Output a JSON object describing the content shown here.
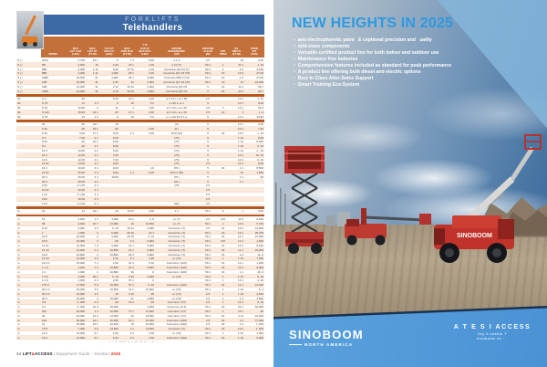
{
  "left_page": {
    "header": {
      "category": "FORKLIFTS",
      "title": "Telehandlers"
    },
    "columns": [
      {
        "lines": [
          "MODEL"
        ]
      },
      {
        "lines": [
          "MAX",
          "LIFT CAP",
          "(LBS)"
        ]
      },
      {
        "lines": [
          "MAX",
          "LIFT HT",
          "(FT-IN)"
        ]
      },
      {
        "lines": [
          "CAP AT",
          "MAX HT",
          "(LBS)"
        ]
      },
      {
        "lines": [
          "MAX",
          "FWD RCH",
          "(FT-IN)"
        ]
      },
      {
        "lines": [
          "T PI",
          "CAP AT",
          "MAX RCH",
          "(LBS)"
        ]
      },
      {
        "lines": [
          "ENGINE",
          "MAKE/MODEL",
          "(HP)"
        ]
      },
      {
        "lines": [
          "GROUND",
          "CLEAR",
          "(IN)"
        ]
      },
      {
        "lines": [
          "STD",
          "TIRES"
        ]
      },
      {
        "lines": [
          "OA",
          "WIDTH",
          "(FT-IN)"
        ]
      },
      {
        "lines": [
          "OPER",
          "WT",
          "(LBS)"
        ]
      }
    ],
    "sections": [
      {
        "rows": [
          [
            "S ( )",
            "3P13",
            "2,700",
            "13 1",
            "5",
            "7 1",
            "5,00",
            "a 1.4",
            "2 5",
            "",
            "10",
            "2,00"
          ],
          [
            "S ( )",
            "6B",
            "4,000",
            "19",
            "1,00",
            "23 1",
            "1,00",
            "a C2 (7)",
            "50 1",
            "1",
            "11 1",
            "1, 10"
          ],
          [
            "S ( )",
            "6B2",
            "4,000",
            "1 11",
            "4,00",
            "27 11",
            "1,10",
            "Cummins QS 3.0 (7)",
            "50 1",
            "1",
            "1 0",
            "2,100"
          ],
          [
            "S ( )",
            "8B2",
            "4,000",
            "1 11",
            "4,000",
            "26 1",
            "2,00",
            "Cummins QS 3.8 (70)",
            "50 1",
            "10",
            "10 0",
            "27,00"
          ],
          [
            "S ( )",
            "10B2",
            "10,000",
            "21",
            "4,000",
            "26 1",
            "6,000",
            "Cummins D50 3 (70)",
            "50 1",
            "10",
            "1 2",
            "27,00"
          ],
          [
            "S ( )",
            "10B",
            "10,000",
            "31",
            "1,00",
            "31",
            "1,000",
            "Cummins QS 3.8 (70)",
            "50 1",
            "10",
            "13",
            "24,200"
          ],
          [
            "S ( )",
            "12B",
            "12,000",
            "31",
            "2 10",
            "30 10",
            "2,000",
            "Cummins QS 3.8",
            "5",
            "16",
            "11 0",
            "30,7"
          ],
          [
            "S ( )",
            "12B2",
            "12,000",
            "31",
            "2 10",
            "30 10",
            "2,000",
            "Cummins QS 4.5",
            "5",
            "16",
            "11 0",
            "30,7"
          ]
        ]
      },
      {
        "rows": [
          [
            "Sk",
            "S 2",
            ",40",
            "",
            "6,43",
            "19 1",
            "2,20",
            "a C 14 i + a i+ 50",
            "2 5",
            "",
            "10 1",
            "1, 10"
          ],
          [
            "Sk",
            "S 75",
            ",72",
            "1 4",
            ", 0",
            "10",
            "5 0",
            "i+i 90 1 i a i i",
            "5",
            "",
            "10 1",
            "9,04"
          ],
          [
            "Sk",
            "S 10",
            "10,00",
            "3",
            ", 11",
            "1",
            "1,90",
            "a C 14 i+ a i+ 50",
            "2 5",
            "1",
            "13 1",
            "24,3"
          ],
          [
            "Sk",
            "S 110",
            "15,00",
            "19 1",
            ",00",
            "17 1",
            "2,90",
            "a C 14 i+ a i+ 50",
            "2 5",
            "10",
            "1",
            "1, 4"
          ],
          [
            "Sk",
            "S 75",
            ",72",
            "1 4",
            ", 0",
            "10",
            "5 0",
            "i+ i+i 40 10 0 1 i+",
            "5",
            "",
            "10 1",
            "10,92"
          ]
        ]
      },
      {
        "rows": [
          [
            "",
            "20",
            ",00",
            "20 1",
            ", 10",
            "",
            "",
            "(0)",
            "5",
            "",
            "10 1",
            "9,00"
          ],
          [
            "",
            "6 20",
            ",00",
            "20 1",
            ",00",
            "",
            "2,00",
            "(0 )",
            "5",
            "",
            "10 1",
            "7,00"
          ],
          [
            "",
            "6 34",
            "5,00",
            "17 1",
            "6,00",
            "2 1",
            "2,00",
            "6/10  (10)",
            "5",
            "20",
            "13 0",
            "1, 10"
          ],
          [
            "",
            "6 4",
            "7,00",
            "2 1",
            "6,00",
            "",
            "",
            "(70)",
            "5",
            "",
            "1 10",
            "8,00"
          ],
          [
            "",
            "8 34",
            ",00",
            "16 1",
            "6,00",
            "",
            "",
            "(70)",
            "5",
            "",
            "1 10",
            "8,000"
          ],
          [
            "",
            "8 4",
            ",00",
            "2 1",
            "6,00",
            "",
            "",
            "(70)",
            "5",
            "",
            "1 10",
            "2, 10"
          ],
          [
            "",
            "10 4",
            "10,00",
            "4 1",
            "6,00",
            "",
            "",
            "(70)",
            "5",
            "",
            "1 10",
            "2 , 10"
          ],
          [
            "",
            "12 4",
            "12,00",
            "4 1",
            "7,00",
            "",
            "",
            "(70)",
            "5",
            "",
            "10 1",
            "10, 10"
          ],
          [
            "",
            "12 6",
            "12,00",
            "4 1",
            "7,20",
            "",
            "",
            "(70)",
            "5",
            "",
            "10 1",
            "0, 10"
          ],
          [
            "",
            "14 02",
            "14,00",
            "2 4",
            "9,00",
            "",
            "",
            "(70)",
            "2 5",
            "",
            "10 1",
            "9,00"
          ],
          [
            "",
            "16 3",
            "16,00",
            "3 4",
            "9,00",
            "",
            ", 10",
            "(76 )",
            "5",
            "16",
            "1 1",
            "8,500"
          ],
          [
            "",
            "20 02",
            "20,00",
            "2 4",
            "6,00",
            "1 1",
            "6,00",
            "4/10 4 (50)",
            "5",
            "",
            "10",
            "1,500"
          ],
          [
            "",
            "20 3",
            "20,00",
            "3 4",
            "10,00",
            "",
            "",
            "(76 )",
            "5",
            "",
            "1 1",
            ",00"
          ],
          [
            "",
            "20 4",
            "20,00",
            "4 1",
            "",
            "",
            "",
            "(76 )",
            "5",
            "",
            "1 1",
            ""
          ],
          [
            "",
            "2 02",
            "2 1,00",
            "2 4",
            "",
            "",
            "",
            "(70)",
            "2 5",
            "",
            "",
            ""
          ],
          [
            "",
            "10 02",
            "10,00",
            "2 4",
            "",
            "",
            "",
            "",
            "2 5",
            "",
            "",
            ""
          ],
          [
            "",
            "1 02",
            "2 1,00",
            "2 4",
            "",
            "",
            "",
            "",
            "2 5",
            "",
            "",
            ""
          ],
          [
            "",
            "9 02",
            "10,00",
            "2 4",
            "",
            "",
            "",
            "",
            "2 5",
            "",
            "",
            ""
          ],
          [
            "",
            "1 02",
            "2 1,00",
            "2 4",
            "",
            "",
            "",
            "(52)",
            "2 5",
            "",
            "",
            ""
          ]
        ]
      },
      {
        "rows": [
          [
            "a i",
            "62",
            ", 11",
            "19 1",
            ", 10",
            "10 10",
            "2,00",
            "2 1",
            "50 1",
            "9",
            "1",
            "9,02"
          ]
        ]
      },
      {
        "rows": [
          [
            "m",
            "61",
            "4,000",
            "1 4",
            "3,000",
            "19 1",
            "2 ,0",
            "a i (7)",
            "2 5",
            "101",
            "11 0",
            "9,200"
          ],
          [
            "m",
            "68",
            "4,600",
            "10 7",
            "13,800",
            "16",
            "13,600",
            "a i (7)",
            "50 1",
            "1",
            "10 0",
            "5,700"
          ],
          [
            "m",
            "8 10",
            "6,000",
            "3 0",
            "6, 10",
            "26 11",
            "2,000",
            "Cummins i (7)",
            "2 5",
            "16",
            "12 0",
            "21,000"
          ],
          [
            "m",
            "1",
            "1,000",
            "4",
            "5,000",
            "20 10",
            "22 1",
            "Cummins i (7)",
            "50 1",
            "16",
            "10 1",
            "25,700"
          ],
          [
            "m",
            "10 8",
            "10,000",
            "4",
            "6,000",
            "20 10",
            "5, 10",
            "Cummins i (7)",
            "50 1",
            "16",
            "12 1",
            "21,520"
          ],
          [
            "m",
            "10 8",
            "10,000",
            "4",
            ",00",
            "0 1",
            "5,000",
            "Cummins i (7)",
            "50 1",
            "107",
            "12 1",
            "1,600"
          ],
          [
            "m",
            "11 10",
            "11,000",
            "7 4",
            "6,200",
            "21 1",
            "5,000",
            "Cummins i (7)",
            "50 1",
            "16",
            "10 1",
            "8,610"
          ],
          [
            "m",
            "12 10",
            "12,000",
            "2 4",
            "10,800",
            "21 1",
            "6,800",
            "Cummins i (7)",
            "50 1",
            "16",
            "12 1",
            "10,200"
          ],
          [
            "m",
            "12 8",
            "12,800",
            "4",
            "10,800",
            "26 4",
            "5,000",
            "Cummins i (7)",
            "50 1",
            "16",
            "1 4",
            "12, 0"
          ],
          [
            "m",
            "12 10",
            "12,000",
            "4 0",
            "1,00",
            "6 1",
            "1,00",
            "a i (73)",
            "50 1",
            "1",
            "1 10",
            "7,000"
          ],
          [
            "m",
            "13 0 C",
            "15,000",
            "7 4",
            "1,00",
            "31 4",
            "5 10",
            "Cummins i (120)",
            "50 1",
            "16",
            "12 1",
            "1,200"
          ],
          [
            "m",
            "1 1 C",
            "1,000",
            "7 4",
            "10,800",
            "31 4",
            "6,000",
            "Cummins i (120)",
            "50 1",
            "16",
            "12 0",
            "9,000"
          ],
          [
            "m",
            "1 C",
            "1,000",
            "4",
            "10,800",
            "30",
            "0",
            "Cummins i (120)",
            "50 1",
            "16",
            "1 1",
            "16, 0"
          ],
          [
            "m",
            "1 9 C",
            "1,000",
            "30 1",
            "6, 10",
            "3 10",
            "5,000",
            "a i (73)",
            "50 1",
            "1",
            "1 10",
            "6, 10"
          ],
          [
            "m",
            "1 4 C",
            "1,000",
            "0 4",
            "2,00",
            "67 1",
            "0",
            "",
            "50 1",
            "1",
            "16 1",
            "4, 10"
          ],
          [
            "m",
            "175 C",
            "17,000",
            "5 0",
            "15,000",
            "57 1",
            "6, 10",
            "Cummins i (120)",
            "50 1",
            "16",
            "12 1",
            "13,040"
          ],
          [
            "m",
            "20 1 C",
            "20,000",
            "5 0",
            "16,500",
            "16 1",
            "10,000",
            "a i (73)",
            "50 1",
            "1",
            "1 10",
            "5, 4"
          ],
          [
            "m",
            "20 2 C",
            "24,000",
            "2 0",
            ", 10",
            "2 10",
            ",00",
            "a i (73)",
            "2 5",
            "1",
            "1 10",
            "2,620"
          ],
          [
            "m",
            "20 C",
            "24,000",
            "4",
            "15,000",
            "27",
            "4,000",
            "a i (73)",
            "2 5",
            "1",
            "1 4",
            "4,500"
          ],
          [
            "m",
            "2 8",
            "2 ,000",
            "4 0",
            ",00",
            "16 4",
            ",00",
            "Cummins i (77)",
            "2 5",
            "1",
            "16 1",
            "6, 40"
          ],
          [
            "m",
            "2 4",
            "2 ,000",
            "10 4",
            "15,000",
            "",
            "4,000",
            "Cummins i (2 4)",
            "50 1",
            "10",
            "20 1",
            "62,000"
          ],
          [
            "m",
            "301",
            "30,000",
            "1 4",
            "12,000",
            "77 1",
            "12,000",
            "Cummins i (77)",
            "50 1",
            "1",
            "16 1",
            ", 40"
          ],
          [
            "m",
            "40",
            "40,000",
            "10 4",
            "14,000",
            "16",
            "14,000",
            "Cummins i (77)",
            "50 1",
            "10",
            "2 11",
            "42,000"
          ],
          [
            "m",
            "104",
            "30,000",
            "10 1",
            "16,400",
            "22 1",
            "16,400",
            "Cummins i (240)",
            "2 5",
            "20",
            "2 4",
            "77,400"
          ],
          [
            "m",
            "10",
            "30,000",
            "10 1",
            "16,400",
            "76",
            "10,000",
            "Cummins i (240)",
            "2 5",
            "20",
            "2 4",
            "7 ,400"
          ],
          [
            "m",
            "73 8",
            "7,000",
            "3 0",
            "13,600",
            "2 1",
            "13,600",
            "Cummins i (7)",
            "50 1",
            "16",
            "12 0",
            "2 ,000"
          ],
          [
            "m",
            "12 6",
            "12,000",
            "6 1",
            "1,00",
            "0 1",
            "1,00",
            "a i (73)",
            "50 1",
            "1",
            "1 10",
            "7,000"
          ],
          [
            "m",
            "14 6",
            "14,000",
            "6 1",
            "1,00",
            "0 1",
            "1,00",
            "Cummins i (120)",
            "50 1",
            "16",
            "1 10",
            "9,000"
          ]
        ]
      }
    ],
    "footnote": "L t in      www a s ok      tw      a t i a t (",
    "footer": {
      "page": "34",
      "brand_lift": "LIFT",
      "brand_amp": "&",
      "brand_access": "ACCESS",
      "rest": " | Equipment Guide - October ",
      "year": "2025"
    }
  },
  "right_page": {
    "headline": "NEW HEIGHTS IN 2025",
    "bullets": [
      "ano electrophoretic paint   E ceptional precision and   uality",
      "orld-class components",
      "Versatile certified product line for both indoor and outdoor use",
      "Maintenance free batteries",
      "Comprehensive features included as standard for peak performance",
      "A product line offering both diesel and electric options",
      "Best In Class After-Sales Support",
      "Smart Training Eco-System"
    ],
    "machine_label": "SINOBOOM",
    "footer": {
      "logo": "SINOBOOM",
      "region": "NORTH AMERICA",
      "tagline": "A T E S I  ACCESS",
      "address": "iley  d      ouston  T",
      "web": "sinoboom us          ·        ·"
    }
  },
  "colors": {
    "header_blue": "#3d69a4",
    "header_orange": "#c4703a",
    "divider_orange": "#b8561c",
    "row_stripe": "#fbe9dc",
    "headline_blue": "#2d9ae0",
    "footer_band_blue": "#4a92d4",
    "accent_red": "#d9261c",
    "machine_red": "#c0332b"
  }
}
